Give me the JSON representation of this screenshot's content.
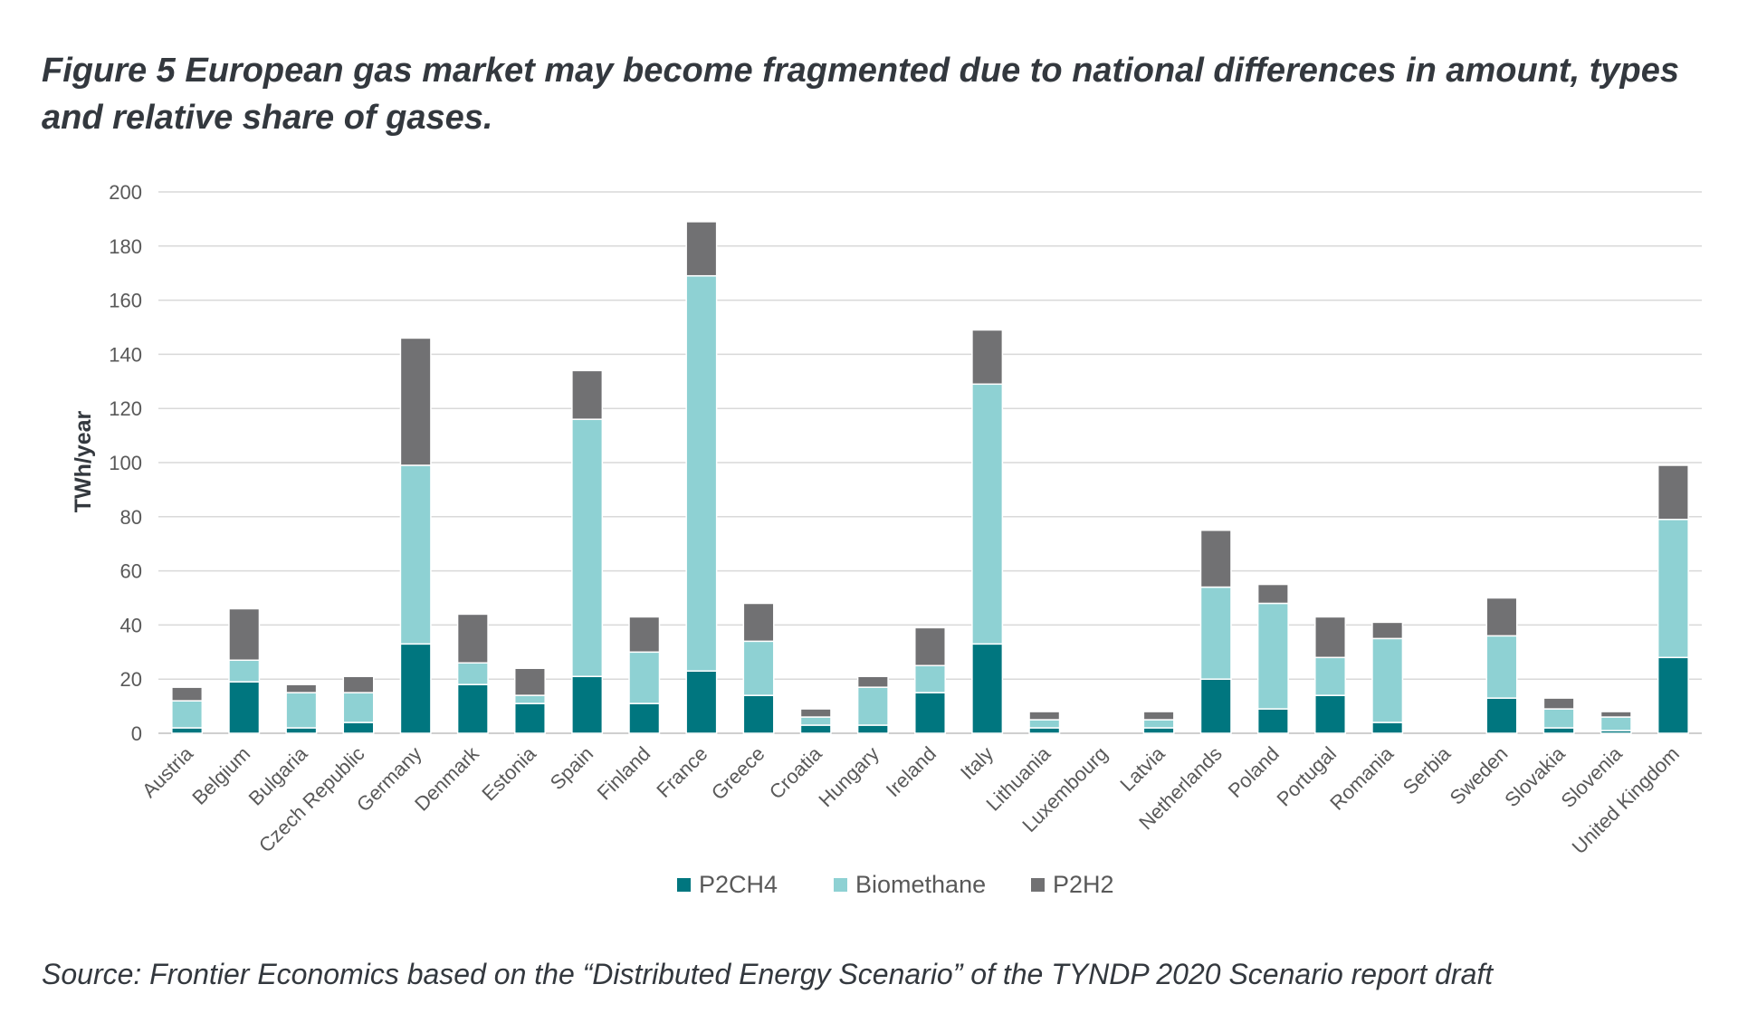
{
  "chart_data": {
    "type": "bar",
    "stacked": true,
    "title": "Figure 5 European gas market may become fragmented due to national differences in amount, types and relative share of gases.",
    "xlabel": "",
    "ylabel": "TWh/year",
    "ylim": [
      0,
      200
    ],
    "yticks": [
      0,
      20,
      40,
      60,
      80,
      100,
      120,
      140,
      160,
      180,
      200
    ],
    "grid": true,
    "legend_position": "bottom",
    "categories": [
      "Austria",
      "Belgium",
      "Bulgaria",
      "Czech Republic",
      "Germany",
      "Denmark",
      "Estonia",
      "Spain",
      "Finland",
      "France",
      "Greece",
      "Croatia",
      "Hungary",
      "Ireland",
      "Italy",
      "Lithuania",
      "Luxembourg",
      "Latvia",
      "Netherlands",
      "Poland",
      "Portugal",
      "Romania",
      "Serbia",
      "Sweden",
      "Slovakia",
      "Slovenia",
      "United Kingdom"
    ],
    "series": [
      {
        "name": "P2CH4",
        "color": "#00767f",
        "values": [
          2,
          19,
          2,
          4,
          33,
          18,
          11,
          21,
          11,
          23,
          14,
          3,
          3,
          15,
          33,
          2,
          0,
          2,
          20,
          9,
          14,
          4,
          0,
          13,
          2,
          1,
          28
        ]
      },
      {
        "name": "Biomethane",
        "color": "#8ed1d3",
        "values": [
          10,
          8,
          13,
          11,
          66,
          8,
          3,
          95,
          19,
          146,
          20,
          3,
          14,
          10,
          96,
          3,
          0,
          3,
          34,
          39,
          14,
          31,
          0,
          23,
          7,
          5,
          51
        ]
      },
      {
        "name": "P2H2",
        "color": "#717173",
        "values": [
          5,
          19,
          3,
          6,
          47,
          18,
          10,
          18,
          13,
          20,
          14,
          3,
          4,
          14,
          20,
          3,
          0,
          3,
          21,
          7,
          15,
          6,
          0,
          14,
          4,
          2,
          20
        ]
      }
    ]
  },
  "source_note": "Source: Frontier Economics based on the “Distributed Energy Scenario” of the TYNDP 2020 Scenario report draft"
}
